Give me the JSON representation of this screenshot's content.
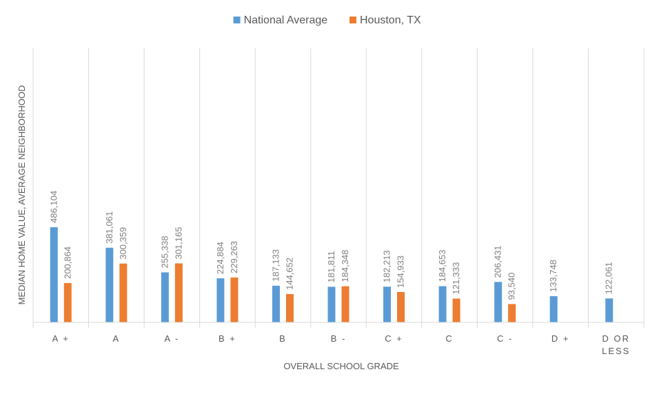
{
  "chart_data": {
    "type": "bar",
    "title": "",
    "xlabel": "OVERALL SCHOOL GRADE",
    "ylabel": "MEDIAN HOME VALUE, AVERAGE NEIGHBORHOOD",
    "categories": [
      "A+",
      "A",
      "A-",
      "B+",
      "B",
      "B-",
      "C+",
      "C",
      "C-",
      "D+",
      "D OR LESS"
    ],
    "category_lines": [
      [
        "A +"
      ],
      [
        "A"
      ],
      [
        "A -"
      ],
      [
        "B +"
      ],
      [
        "B"
      ],
      [
        "B -"
      ],
      [
        "C +"
      ],
      [
        "C"
      ],
      [
        "C -"
      ],
      [
        "D +"
      ],
      [
        "D   OR",
        "LESS"
      ]
    ],
    "series": [
      {
        "name": "National Average",
        "color": "#5b9bd5",
        "values": [
          486104,
          381061,
          255338,
          224884,
          187133,
          181811,
          182213,
          184653,
          206431,
          133748,
          122061
        ],
        "labels": [
          "486,104",
          "381,061",
          "255,338",
          "224,884",
          "187,133",
          "181,811",
          "182,213",
          "184,653",
          "206,431",
          "133,748",
          "122,061"
        ]
      },
      {
        "name": "Houston, TX",
        "color": "#ed7d31",
        "values": [
          200864,
          300359,
          301165,
          229263,
          144652,
          184348,
          154933,
          121333,
          93540,
          null,
          null
        ],
        "labels": [
          "200,864",
          "300,359",
          "301,165",
          "229,263",
          "144,652",
          "184,348",
          "154,933",
          "121,333",
          "93,540",
          null,
          null
        ]
      }
    ],
    "ylim": [
      0,
      1400000
    ],
    "grid": "vertical category separators",
    "legend_position": "top"
  }
}
